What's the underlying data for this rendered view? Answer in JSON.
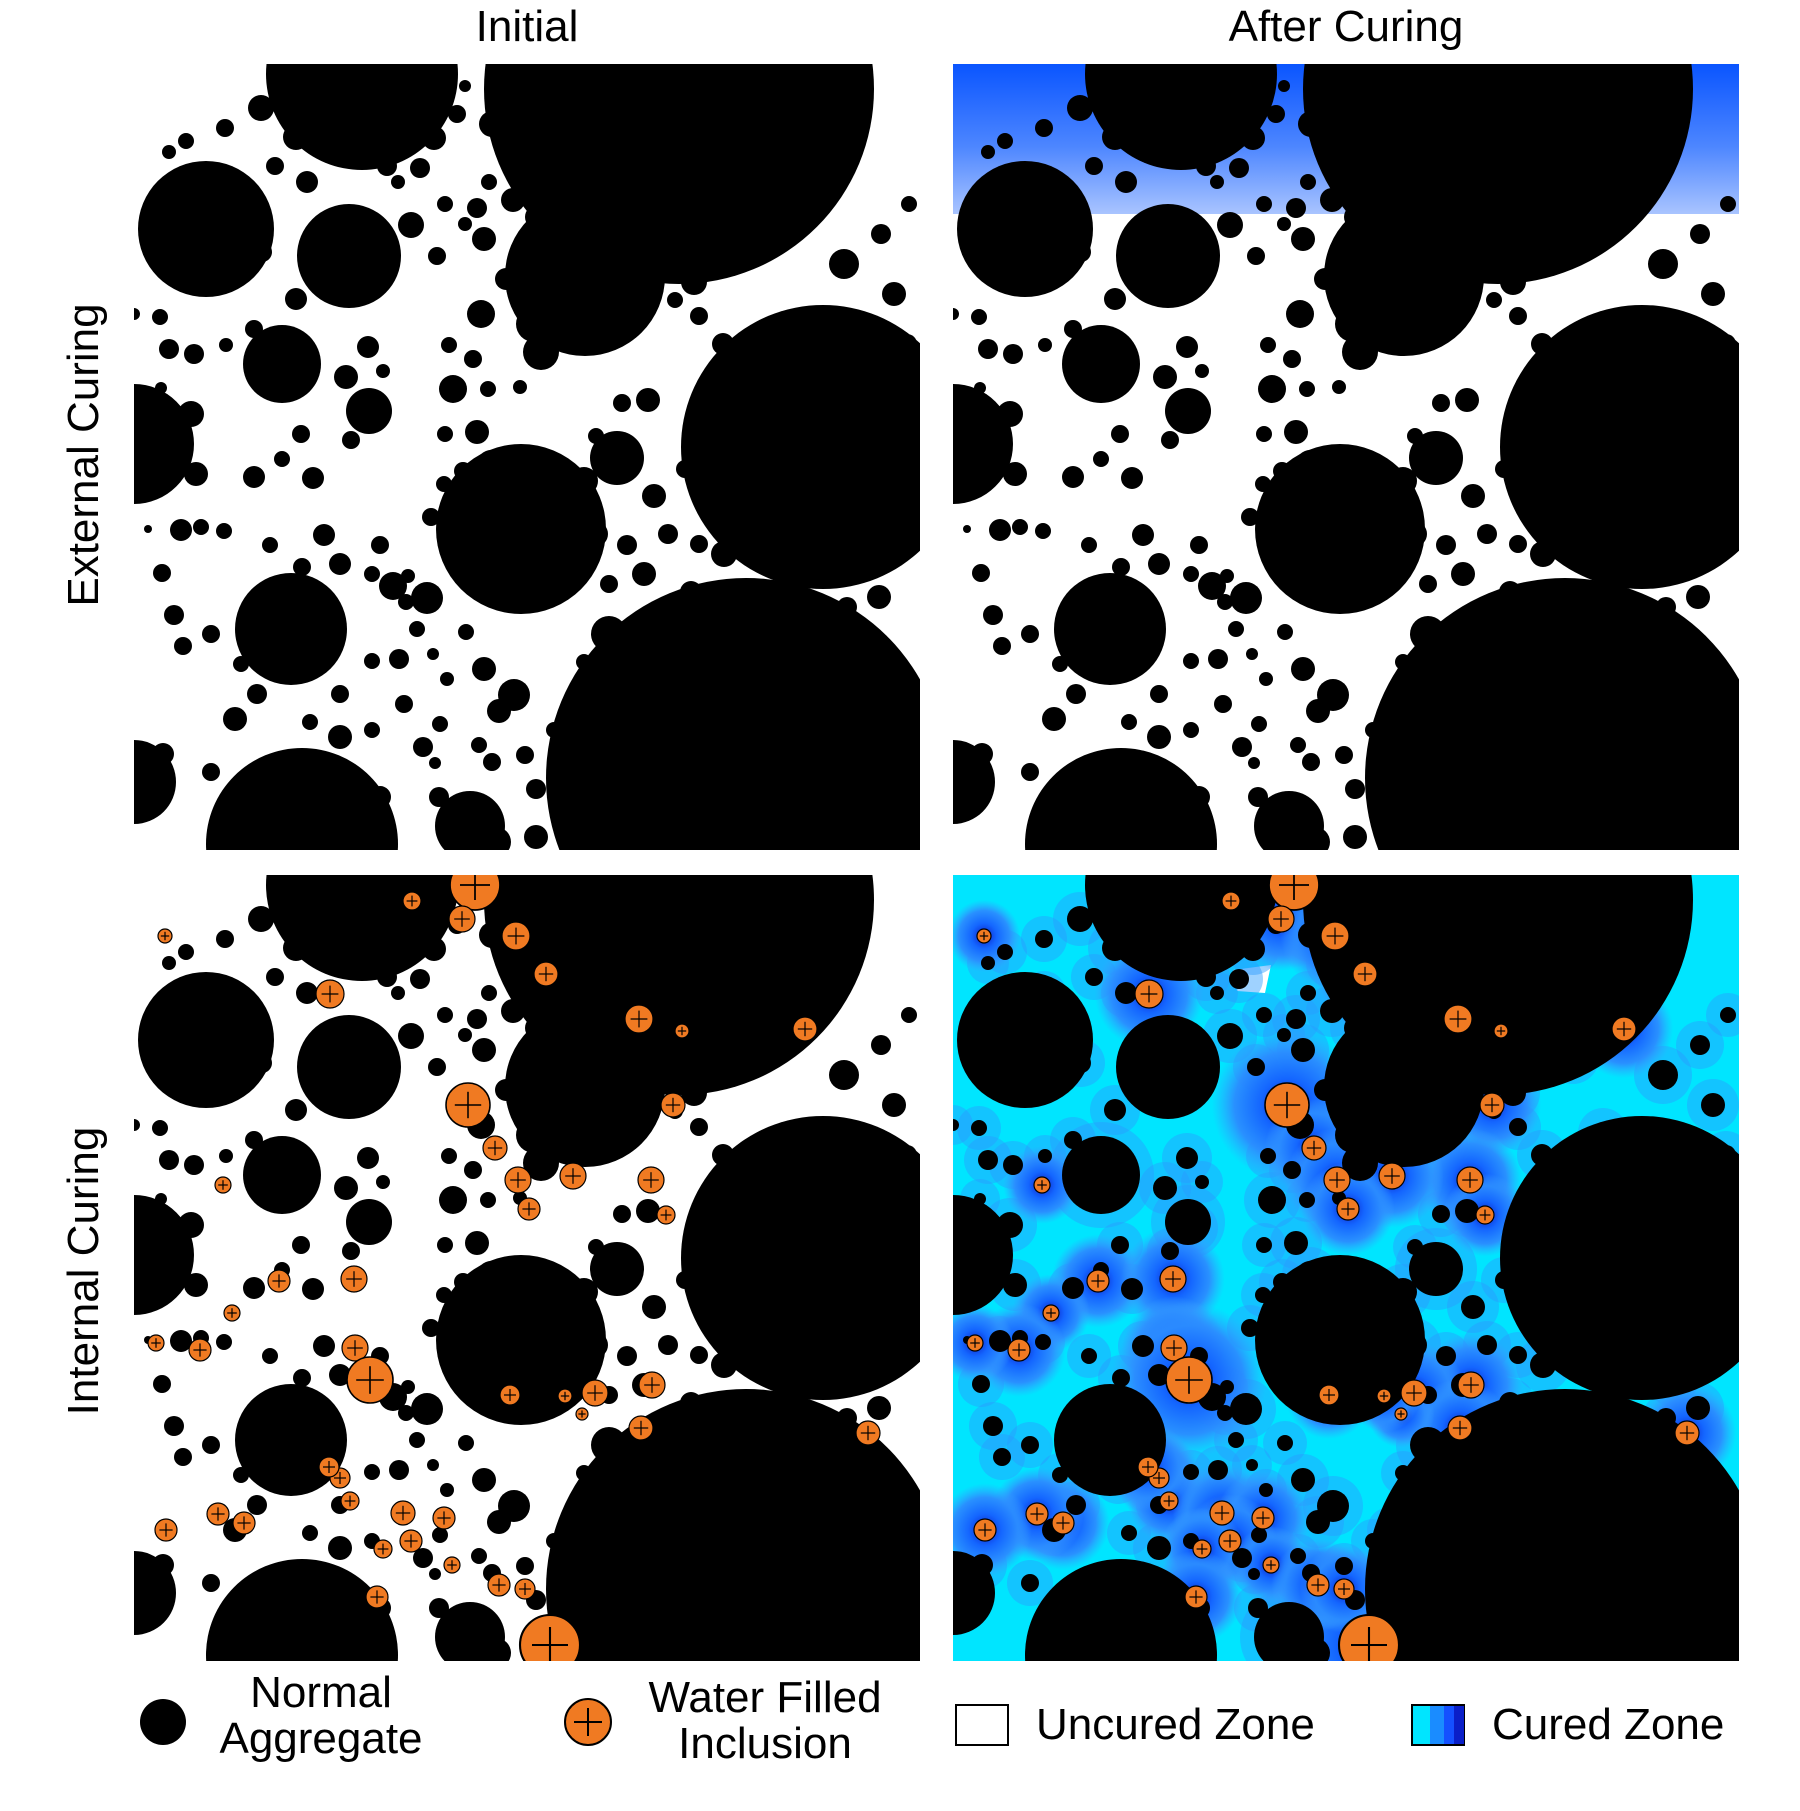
{
  "columns": {
    "left": "Initial",
    "right": "After Curing"
  },
  "rows": {
    "top": "External Curing",
    "bottom": "Internal Curing"
  },
  "legend": {
    "normal_line1": "Normal",
    "normal_line2": "Aggregate",
    "water_line1": "Water Filled",
    "water_line2": "Inclusion",
    "uncured": "Uncured Zone",
    "cured": "Cured Zone"
  },
  "colors": {
    "aggregate": "#000000",
    "inclusion": "#f07a22",
    "cured_light": "#00e5ff",
    "cured_mid": "#1a8cff",
    "cured_dark": "#0a1fc8",
    "uncured": "#ffffff"
  }
}
